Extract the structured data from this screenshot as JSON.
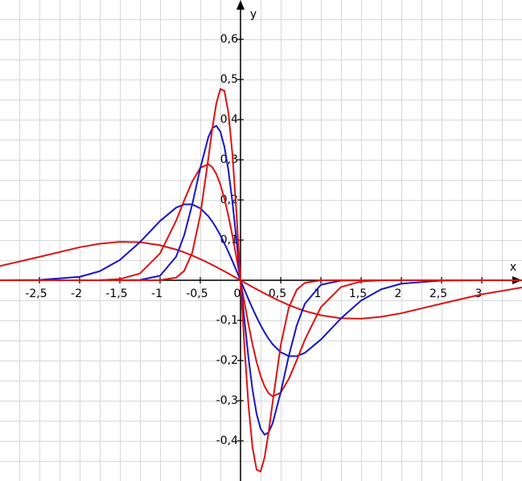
{
  "chart_data": {
    "type": "line",
    "x_label": "x",
    "y_label": "y",
    "x": [
      -3,
      -2.5,
      -2,
      -1.75,
      -1.5,
      -1.25,
      -1,
      -0.8,
      -0.7,
      -0.6,
      -0.5,
      -0.4,
      -0.35,
      -0.3,
      -0.25,
      -0.2,
      -0.15,
      -0.1,
      -0.05,
      0,
      0.05,
      0.1,
      0.15,
      0.2,
      0.25,
      0.3,
      0.35,
      0.4,
      0.5,
      0.6,
      0.7,
      0.8,
      1,
      1.25,
      1.5,
      1.75,
      2,
      2.5,
      3,
      3.5
    ],
    "series": [
      {
        "color": "#dd1111",
        "values": [
          0.035,
          0.0583,
          0.0821,
          0.091,
          0.0957,
          0.0948,
          0.0873,
          0.0765,
          0.0695,
          0.0616,
          0.0527,
          0.0432,
          0.0381,
          0.0329,
          0.0276,
          0.0222,
          0.0168,
          0.0112,
          0.0056,
          0,
          -0.0056,
          -0.0112,
          -0.0168,
          -0.0222,
          -0.0276,
          -0.0329,
          -0.0381,
          -0.0432,
          -0.0527,
          -0.0616,
          -0.0695,
          -0.0765,
          -0.0873,
          -0.0948,
          -0.0957,
          -0.091,
          -0.0821,
          -0.0583,
          -0.035,
          -0.018
        ]
      },
      {
        "color": "#1515c8",
        "values": [
          0,
          0.0007,
          0.0085,
          0.0225,
          0.0504,
          0.0948,
          0.1476,
          0.1809,
          0.1889,
          0.1889,
          0.1793,
          0.1595,
          0.1459,
          0.13,
          0.1119,
          0.0919,
          0.0704,
          0.0476,
          0.024,
          0,
          -0.024,
          -0.0476,
          -0.0704,
          -0.0919,
          -0.1119,
          -0.13,
          -0.1459,
          -0.1595,
          -0.1793,
          -0.1889,
          -0.1889,
          -0.1809,
          -0.1476,
          -0.0948,
          -0.0504,
          -0.0225,
          -0.0085,
          -0.0007,
          0,
          0
        ]
      },
      {
        "color": "#dd1111",
        "values": [
          0,
          0,
          0,
          0.0003,
          0.0029,
          0.0169,
          0.0669,
          0.1484,
          0.1987,
          0.2461,
          0.2801,
          0.2892,
          0.2815,
          0.2645,
          0.2383,
          0.2032,
          0.1601,
          0.1106,
          0.0565,
          0,
          -0.0565,
          -0.1106,
          -0.1601,
          -0.2032,
          -0.2383,
          -0.2645,
          -0.2815,
          -0.2892,
          -0.2801,
          -0.2461,
          -0.1987,
          -0.1484,
          -0.0669,
          -0.0169,
          -0.0029,
          -0.0003,
          0,
          0,
          0,
          0
        ]
      },
      {
        "color": "#1515c8",
        "values": [
          0,
          0,
          0,
          0,
          0,
          0.0008,
          0.0113,
          0.0587,
          0.1121,
          0.1889,
          0.2789,
          0.3563,
          0.379,
          0.3847,
          0.3699,
          0.3326,
          0.2733,
          0.1944,
          0.1011,
          0,
          -0.1011,
          -0.1944,
          -0.2733,
          -0.3326,
          -0.3699,
          -0.3847,
          -0.379,
          -0.3563,
          -0.2789,
          -0.1889,
          -0.1121,
          -0.0587,
          -0.0113,
          -0.0008,
          0,
          0,
          0,
          0,
          0,
          0
        ]
      },
      {
        "color": "#dd1111",
        "values": [
          0,
          0,
          0,
          0,
          0,
          0,
          0.0003,
          0.0065,
          0.0234,
          0.0687,
          0.1619,
          0.3034,
          0.3783,
          0.4409,
          0.4765,
          0.4716,
          0.4173,
          0.3131,
          0.168,
          0,
          -0.168,
          -0.3131,
          -0.4173,
          -0.4716,
          -0.4765,
          -0.4409,
          -0.3783,
          -0.3034,
          -0.1619,
          -0.0687,
          -0.0234,
          -0.0065,
          -0.0003,
          0,
          0,
          0,
          0,
          0,
          0,
          0
        ]
      }
    ],
    "xlim": [
      -2.99,
      3.5
    ],
    "ylim": [
      -0.5,
      0.698
    ],
    "xticks": [
      {
        "value": -2.5,
        "label": "-2,5"
      },
      -2,
      {
        "value": -1.5,
        "label": "-1,5"
      },
      -1,
      {
        "value": -0.5,
        "label": "-0,5"
      },
      0,
      {
        "value": 0.5,
        "label": "0,5"
      },
      1,
      {
        "value": 1.5,
        "label": "1,5"
      },
      2,
      {
        "value": 2.5,
        "label": "2,5"
      },
      3
    ],
    "yticks": [
      {
        "value": 0.6,
        "label": "0,6"
      },
      {
        "value": 0.5,
        "label": "0,5"
      },
      {
        "value": 0.4,
        "label": "0,4"
      },
      {
        "value": 0.3,
        "label": "0,3"
      },
      {
        "value": 0.2,
        "label": "0,2"
      },
      {
        "value": 0.1,
        "label": "0,1"
      },
      {
        "value": -0.1,
        "label": "-0,1"
      },
      {
        "value": -0.2,
        "label": "-0,2"
      },
      {
        "value": -0.3,
        "label": "-0,3"
      },
      {
        "value": -0.4,
        "label": "-0,4"
      }
    ]
  }
}
